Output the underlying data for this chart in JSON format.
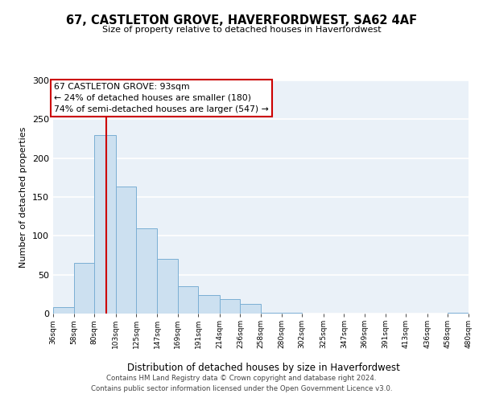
{
  "title": "67, CASTLETON GROVE, HAVERFORDWEST, SA62 4AF",
  "subtitle": "Size of property relative to detached houses in Haverfordwest",
  "xlabel": "Distribution of detached houses by size in Haverfordwest",
  "ylabel": "Number of detached properties",
  "bar_color": "#cce0f0",
  "bar_edge_color": "#7bafd4",
  "background_color": "#eaf1f8",
  "grid_color": "#ffffff",
  "annotation_box_color": "#cc0000",
  "vline_color": "#cc0000",
  "vline_x": 93,
  "annotation_title": "67 CASTLETON GROVE: 93sqm",
  "annotation_line1": "← 24% of detached houses are smaller (180)",
  "annotation_line2": "74% of semi-detached houses are larger (547) →",
  "bin_edges": [
    36,
    58,
    80,
    103,
    125,
    147,
    169,
    191,
    214,
    236,
    258,
    280,
    302,
    325,
    347,
    369,
    391,
    413,
    436,
    458,
    480
  ],
  "bin_labels": [
    "36sqm",
    "58sqm",
    "80sqm",
    "103sqm",
    "125sqm",
    "147sqm",
    "169sqm",
    "191sqm",
    "214sqm",
    "236sqm",
    "258sqm",
    "280sqm",
    "302sqm",
    "325sqm",
    "347sqm",
    "369sqm",
    "391sqm",
    "413sqm",
    "436sqm",
    "458sqm",
    "480sqm"
  ],
  "counts": [
    8,
    65,
    230,
    163,
    110,
    70,
    35,
    24,
    19,
    12,
    1,
    1,
    0,
    0,
    0,
    0,
    0,
    0,
    0,
    1
  ],
  "ylim": [
    0,
    300
  ],
  "yticks": [
    0,
    50,
    100,
    150,
    200,
    250,
    300
  ],
  "footer_line1": "Contains HM Land Registry data © Crown copyright and database right 2024.",
  "footer_line2": "Contains public sector information licensed under the Open Government Licence v3.0."
}
